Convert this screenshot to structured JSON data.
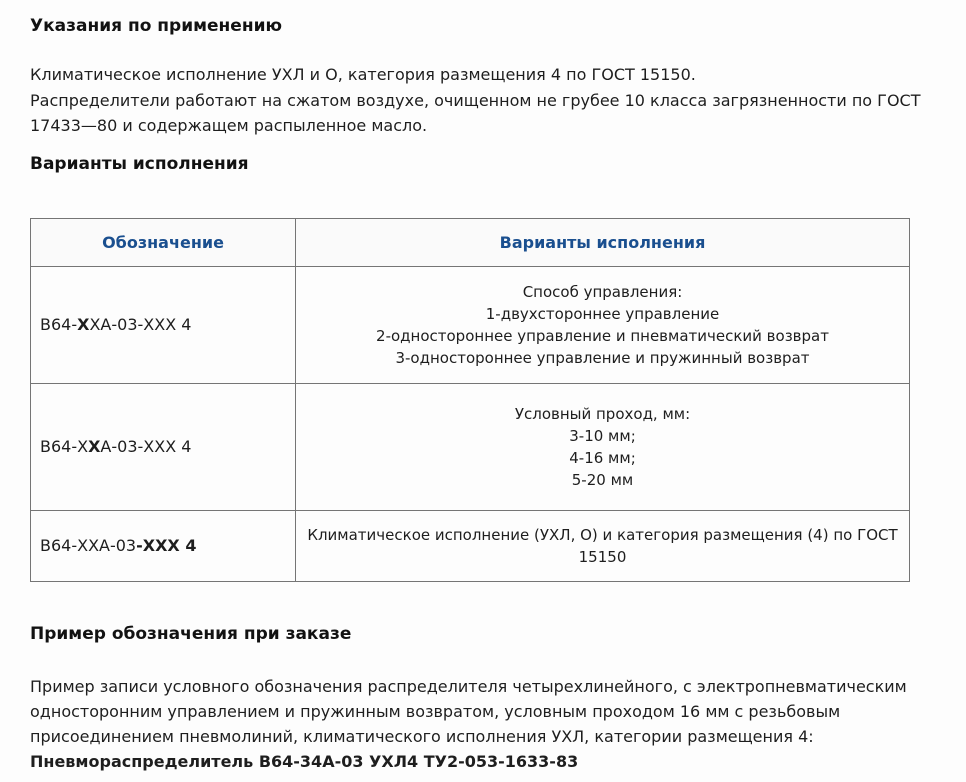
{
  "colors": {
    "accent_blue": "#1a4f8f",
    "table_border": "#757575",
    "page_background": "#fdfdfd"
  },
  "usage": {
    "heading": "Указания по применению",
    "lines": [
      "Климатическое исполнение УХЛ и О, категория размещения 4 по ГОСТ 15150.",
      "Распределители работают на сжатом воздухе, очищенном не грубее 10 класса загрязненности по ГОСТ",
      "17433—80 и содержащем распыленное масло."
    ]
  },
  "variants": {
    "heading": "Варианты исполнения"
  },
  "table": {
    "headers": [
      "Обозначение",
      "Варианты исполнения"
    ],
    "rows": [
      {
        "designation": {
          "pre": "В64-",
          "bold": "Х",
          "post": "ХА-03-ХХХ 4"
        },
        "lines": [
          "Способ управления:",
          "1-двухстороннее управление",
          "2-одностороннее управление и пневматический возврат",
          "3-одностороннее управление и пружинный возврат"
        ]
      },
      {
        "designation": {
          "pre": "В64-Х",
          "bold": "Х",
          "post": "А-03-ХХХ 4"
        },
        "lines": [
          "Условный проход, мм:",
          "3-10 мм;",
          "4-16 мм;",
          "5-20 мм"
        ]
      },
      {
        "designation": {
          "pre": "В64-ХХА-03",
          "bold": "-ХХХ 4",
          "post": ""
        },
        "lines": [
          "Климатическое исполнение (УХЛ, О) и категория размещения (4) по ГОСТ",
          "15150"
        ]
      }
    ]
  },
  "order_example": {
    "heading": "Пример обозначения при заказе",
    "lines": [
      "Пример записи условного обозначения распределителя четырехлинейного, с электропневматическим",
      "односторонним управлением и пружинным возвратом, условным проходом 16 мм с резьбовым",
      "присоединением пневмолиний, климатического исполнения УХЛ, категории размещения 4:"
    ],
    "bold_line": "Пневмораспределитель В64-34А-03 УХЛ4 ТУ2-053-1633-83"
  }
}
